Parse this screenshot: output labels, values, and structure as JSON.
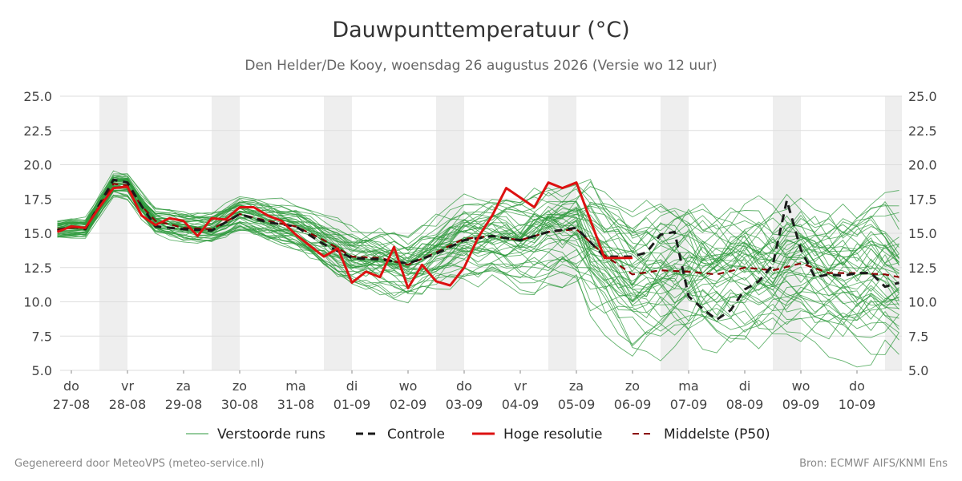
{
  "title": "Dauwpunttemperatuur (°C)",
  "subtitle": "Den Helder/De Kooy, woensdag 26 augustus 2026 (Versie wo 12 uur)",
  "footer_left": "Gegenereerd door MeteoVPS (meteo-service.nl)",
  "footer_right": "Bron: ECMWF AIFS/KNMI Ens",
  "chart_data": {
    "type": "line",
    "ylim": [
      5.0,
      25.0
    ],
    "yticks": [
      "5.0",
      "7.5",
      "10.0",
      "12.5",
      "15.0",
      "17.5",
      "20.0",
      "22.5",
      "25.0"
    ],
    "x_unit": "days since Thu 27-08 00:00",
    "xlim": [
      -0.2,
      14.8
    ],
    "days": [
      {
        "day": "do",
        "date": "27-08"
      },
      {
        "day": "vr",
        "date": "28-08"
      },
      {
        "day": "za",
        "date": "29-08"
      },
      {
        "day": "zo",
        "date": "30-08"
      },
      {
        "day": "ma",
        "date": "31-08"
      },
      {
        "day": "di",
        "date": "01-09"
      },
      {
        "day": "wo",
        "date": "02-09"
      },
      {
        "day": "do",
        "date": "03-09"
      },
      {
        "day": "vr",
        "date": "04-09"
      },
      {
        "day": "za",
        "date": "05-09"
      },
      {
        "day": "zo",
        "date": "06-09"
      },
      {
        "day": "ma",
        "date": "07-09"
      },
      {
        "day": "di",
        "date": "08-09"
      },
      {
        "day": "wo",
        "date": "09-09"
      },
      {
        "day": "do",
        "date": "10-09"
      }
    ],
    "shaded_bands": [
      [
        0.5,
        1.0
      ],
      [
        2.5,
        3.0
      ],
      [
        4.5,
        5.0
      ],
      [
        6.5,
        7.0
      ],
      [
        8.5,
        9.0
      ],
      [
        10.5,
        11.0
      ],
      [
        12.5,
        13.0
      ],
      [
        14.5,
        14.8
      ]
    ],
    "grid": true,
    "legend_position": "bottom",
    "legend": [
      "Verstoorde runs",
      "Controle",
      "Hoge resolutie",
      "Middelste (P50)"
    ],
    "colors": {
      "ensemble": "#2e9a3c",
      "control": "#1a1a1a",
      "hires": "#dd1111",
      "median": "#8b0000",
      "shade": "#eeeeee"
    },
    "ensemble_member_count": 50,
    "series": [
      {
        "name": "Hoge resolutie",
        "style": "solid",
        "color": "#dd1111",
        "x": [
          -0.25,
          0.0,
          0.25,
          0.5,
          0.75,
          1.0,
          1.25,
          1.5,
          1.75,
          2.0,
          2.25,
          2.5,
          2.75,
          3.0,
          3.25,
          3.5,
          3.75,
          4.0,
          4.25,
          4.5,
          4.75,
          5.0,
          5.25,
          5.5,
          5.75,
          6.0,
          6.25,
          6.5,
          6.75,
          7.0,
          7.25,
          7.5,
          7.75,
          8.0,
          8.25,
          8.5,
          8.75,
          9.0,
          9.5,
          10.0
        ],
        "y": [
          15.1,
          15.5,
          15.4,
          16.9,
          18.3,
          18.4,
          16.3,
          15.6,
          16.1,
          15.9,
          14.8,
          16.1,
          16.0,
          16.9,
          16.9,
          16.3,
          15.9,
          14.9,
          14.1,
          13.3,
          13.9,
          11.4,
          12.2,
          11.8,
          14.0,
          11.0,
          12.7,
          11.5,
          11.2,
          12.5,
          14.7,
          16.3,
          18.3,
          17.6,
          16.9,
          18.7,
          18.3,
          18.7,
          13.2,
          13.2
        ]
      },
      {
        "name": "Controle",
        "style": "dashed",
        "color": "#1a1a1a",
        "x": [
          -0.25,
          0.0,
          0.25,
          0.75,
          1.0,
          1.25,
          1.5,
          2.0,
          2.5,
          3.0,
          3.5,
          4.0,
          4.5,
          5.0,
          5.5,
          6.0,
          6.5,
          7.0,
          7.5,
          8.0,
          8.5,
          9.0,
          9.5,
          10.0,
          10.25,
          10.5,
          10.75,
          11.0,
          11.25,
          11.5,
          11.75,
          12.0,
          12.25,
          12.5,
          12.75,
          13.0,
          13.25,
          13.5,
          13.75,
          14.0,
          14.25,
          14.5,
          14.75
        ],
        "y": [
          15.2,
          15.5,
          15.3,
          18.9,
          18.7,
          17.0,
          15.5,
          15.3,
          15.2,
          16.4,
          15.8,
          15.5,
          14.2,
          13.2,
          13.1,
          12.8,
          13.5,
          14.5,
          14.8,
          14.5,
          15.1,
          15.4,
          13.3,
          13.3,
          13.6,
          14.9,
          15.1,
          10.4,
          9.5,
          8.7,
          9.4,
          10.9,
          11.5,
          12.7,
          17.4,
          13.8,
          11.8,
          12.0,
          11.9,
          12.1,
          12.1,
          11.1,
          11.4
        ]
      },
      {
        "name": "Middelste (P50)",
        "style": "dashed",
        "color": "#8b0000",
        "x": [
          -0.25,
          0.0,
          0.25,
          0.75,
          1.0,
          1.25,
          1.5,
          2.0,
          2.5,
          3.0,
          3.5,
          4.0,
          4.5,
          5.0,
          5.5,
          6.0,
          6.5,
          7.0,
          7.5,
          8.0,
          8.5,
          9.0,
          9.5,
          10.0,
          10.5,
          11.0,
          11.5,
          12.0,
          12.5,
          13.0,
          13.5,
          14.0,
          14.5,
          14.75
        ],
        "y": [
          15.3,
          15.4,
          15.4,
          18.6,
          18.5,
          17.0,
          15.9,
          15.4,
          15.3,
          16.4,
          15.9,
          15.5,
          14.5,
          13.3,
          13.2,
          12.7,
          13.6,
          14.6,
          14.8,
          14.5,
          15.1,
          15.3,
          13.4,
          12.0,
          12.3,
          12.2,
          12.0,
          12.5,
          12.3,
          12.8,
          12.1,
          12.1,
          12.0,
          11.8
        ]
      }
    ]
  }
}
